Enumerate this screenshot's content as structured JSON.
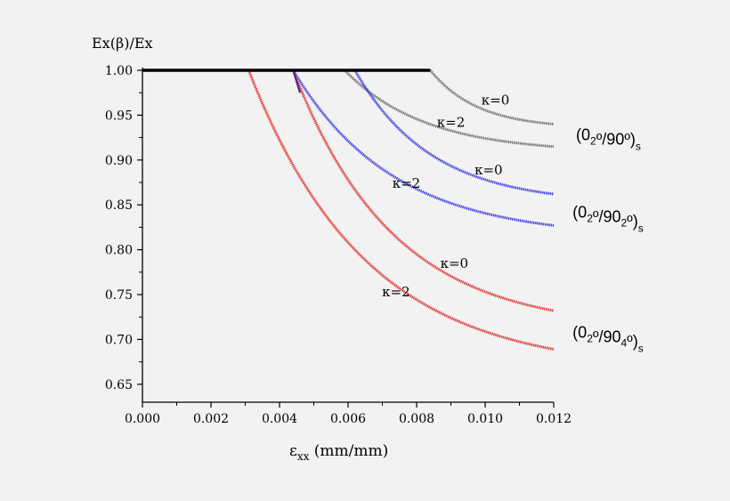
{
  "chart_data": {
    "type": "line",
    "ylabel": "Ex(β)/Ex",
    "xlabel": {
      "main": "ε",
      "sub": "xx",
      "unit": " (mm/mm)"
    },
    "xlim": [
      0.0,
      0.012
    ],
    "ylim": [
      0.63,
      1.0
    ],
    "xticks": [
      "0.000",
      "0.002",
      "0.004",
      "0.006",
      "0.008",
      "0.010",
      "0.012"
    ],
    "yticks": [
      "0.65",
      "0.70",
      "0.75",
      "0.80",
      "0.85",
      "0.90",
      "0.95",
      "1.00"
    ],
    "grid": false,
    "colors": {
      "baseline": "#000000",
      "laminate_90": "#707070",
      "laminate_90_2": "#3a3ae6",
      "laminate_90_4": "#e03030",
      "onset": "#5a2a8a"
    },
    "baseline": {
      "x": [
        0.0,
        0.0084
      ],
      "y": [
        1.0,
        1.0
      ]
    },
    "series": [
      {
        "group": "laminate_90",
        "kappa": 0,
        "x0": 0.0084,
        "k": 0.85,
        "yend": 0.94,
        "m": 2.6
      },
      {
        "group": "laminate_90",
        "kappa": 2,
        "x0": 0.0059,
        "k": 0.75,
        "yend": 0.915,
        "m": 2.6
      },
      {
        "group": "laminate_90_2",
        "kappa": 0,
        "x0": 0.0062,
        "k": 0.9,
        "yend": 0.862,
        "m": 2.6
      },
      {
        "group": "laminate_90_2",
        "kappa": 2,
        "x0": 0.0044,
        "k": 0.8,
        "yend": 0.827,
        "m": 2.6
      },
      {
        "group": "laminate_90_4",
        "kappa": 0,
        "x0": 0.0044,
        "k": 0.8,
        "yend": 0.732,
        "m": 2.6
      },
      {
        "group": "laminate_90_4",
        "kappa": 2,
        "x0": 0.0031,
        "k": 0.7,
        "yend": 0.689,
        "m": 2.6
      }
    ],
    "annotations": {
      "kappa_labels": [
        {
          "text": "κ=0",
          "x": 0.0103,
          "y": 0.962
        },
        {
          "text": "κ=2",
          "x": 0.009,
          "y": 0.937
        },
        {
          "text": "κ=0",
          "x": 0.0101,
          "y": 0.884
        },
        {
          "text": "κ=2",
          "x": 0.0077,
          "y": 0.869
        },
        {
          "text": "κ=0",
          "x": 0.0091,
          "y": 0.78
        },
        {
          "text": "κ=2",
          "x": 0.0074,
          "y": 0.748
        }
      ],
      "laminate_labels": [
        {
          "open": "(0",
          "s1": "2",
          "mid": "º/90º)",
          "s2": "",
          "close": "",
          "subend": "s",
          "x": 0.01265,
          "y": 0.922
        },
        {
          "open": "(0",
          "s1": "2",
          "mid": "º/90",
          "s2": "2",
          "close": "º)",
          "subend": "s",
          "x": 0.01255,
          "y": 0.836
        },
        {
          "open": "(0",
          "s1": "2",
          "mid": "º/90",
          "s2": "4",
          "close": "º)",
          "subend": "s",
          "x": 0.01255,
          "y": 0.702
        }
      ]
    }
  }
}
